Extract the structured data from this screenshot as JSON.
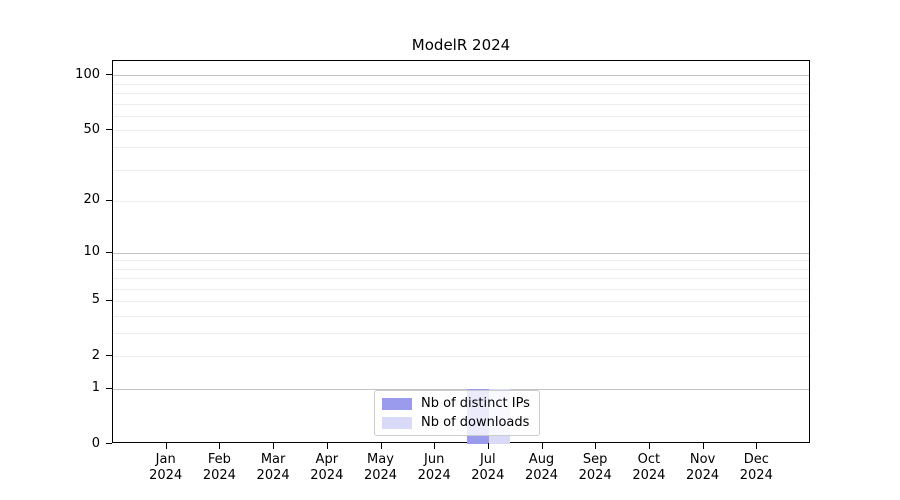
{
  "chart_data": {
    "type": "bar",
    "title": "ModelR 2024",
    "months": [
      "Jan",
      "Feb",
      "Mar",
      "Apr",
      "May",
      "Jun",
      "Jul",
      "Aug",
      "Sep",
      "Oct",
      "Nov",
      "Dec"
    ],
    "year": "2024",
    "series": [
      {
        "name": "Nb of distinct IPs",
        "color": "#9b9bee",
        "values": [
          0,
          0,
          0,
          0,
          0,
          0,
          1,
          0,
          0,
          0,
          0,
          0
        ]
      },
      {
        "name": "Nb of downloads",
        "color": "#d9d9f8",
        "values": [
          0,
          0,
          0,
          0,
          0,
          0,
          1,
          0,
          0,
          0,
          0,
          0
        ]
      }
    ],
    "yscale": "log1p",
    "ylim": [
      0,
      120
    ],
    "yticks": [
      0,
      1,
      2,
      5,
      10,
      20,
      50,
      100
    ],
    "major_gridlines": [
      1,
      10,
      100
    ],
    "minor_gridlines": [
      2,
      3,
      4,
      5,
      6,
      7,
      8,
      9,
      20,
      30,
      40,
      50,
      60,
      70,
      80,
      90
    ],
    "grid": true,
    "legend_position": "lower center",
    "colors": {
      "major_grid": "#c3c3c3",
      "minor_grid": "#ededed",
      "spine": "#000000",
      "text": "#000000"
    }
  }
}
